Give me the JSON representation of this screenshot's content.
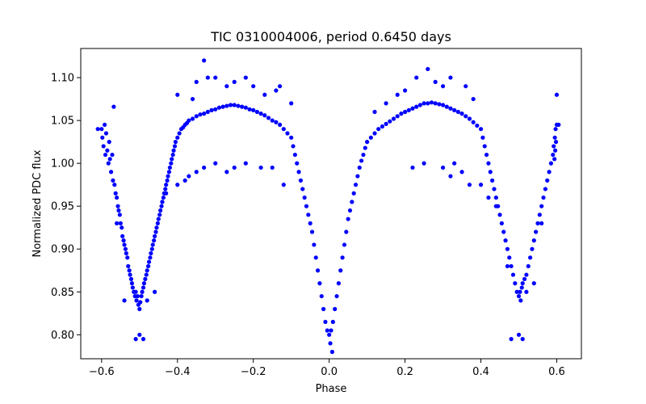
{
  "chart_data": {
    "type": "scatter",
    "title": "TIC 0310004006, period 0.6450 days",
    "xlabel": "Phase",
    "ylabel": "Normalized PDC flux",
    "xlim": [
      -0.655,
      0.665
    ],
    "ylim": [
      0.772,
      1.134
    ],
    "grid": false,
    "legend": "none",
    "marker_color": "#0000ff",
    "x_ticks": [
      {
        "value": -0.6,
        "label": "−0.6"
      },
      {
        "value": -0.4,
        "label": "−0.4"
      },
      {
        "value": -0.2,
        "label": "−0.2"
      },
      {
        "value": 0.0,
        "label": "0.0"
      },
      {
        "value": 0.2,
        "label": "0.2"
      },
      {
        "value": 0.4,
        "label": "0.4"
      },
      {
        "value": 0.6,
        "label": "0.6"
      }
    ],
    "y_ticks": [
      {
        "value": 0.8,
        "label": "0.80"
      },
      {
        "value": 0.85,
        "label": "0.85"
      },
      {
        "value": 0.9,
        "label": "0.90"
      },
      {
        "value": 0.95,
        "label": "0.95"
      },
      {
        "value": 1.0,
        "label": "1.00"
      },
      {
        "value": 1.05,
        "label": "1.05"
      },
      {
        "value": 1.1,
        "label": "1.10"
      }
    ],
    "series": [
      {
        "points": [
          [
            -0.6,
            1.04
          ],
          [
            -0.598,
            1.03
          ],
          [
            -0.595,
            1.02
          ],
          [
            -0.592,
            1.045
          ],
          [
            -0.59,
            1.01
          ],
          [
            -0.588,
            1.035
          ],
          [
            -0.585,
            1.015
          ],
          [
            -0.582,
            1.0
          ],
          [
            -0.58,
            1.025
          ],
          [
            -0.578,
            1.005
          ],
          [
            -0.575,
            0.99
          ],
          [
            -0.572,
            1.01
          ],
          [
            -0.57,
            0.98
          ],
          [
            -0.568,
            1.066
          ],
          [
            -0.566,
            0.975
          ],
          [
            -0.563,
            0.965
          ],
          [
            -0.56,
            0.96
          ],
          [
            -0.557,
            0.95
          ],
          [
            -0.555,
            0.945
          ],
          [
            -0.552,
            0.94
          ],
          [
            -0.55,
            0.93
          ],
          [
            -0.547,
            0.925
          ],
          [
            -0.545,
            0.915
          ],
          [
            -0.542,
            0.91
          ],
          [
            -0.54,
            0.905
          ],
          [
            -0.537,
            0.9
          ],
          [
            -0.535,
            0.895
          ],
          [
            -0.532,
            0.89
          ],
          [
            -0.53,
            0.88
          ],
          [
            -0.527,
            0.875
          ],
          [
            -0.525,
            0.87
          ],
          [
            -0.522,
            0.865
          ],
          [
            -0.52,
            0.86
          ],
          [
            -0.518,
            0.855
          ],
          [
            -0.515,
            0.85
          ],
          [
            -0.512,
            0.845
          ],
          [
            -0.51,
            0.85
          ],
          [
            -0.508,
            0.84
          ],
          [
            -0.505,
            0.845
          ],
          [
            -0.503,
            0.835
          ],
          [
            -0.5,
            0.83
          ],
          [
            -0.498,
            0.838
          ],
          [
            -0.495,
            0.845
          ],
          [
            -0.493,
            0.85
          ],
          [
            -0.49,
            0.855
          ],
          [
            -0.488,
            0.86
          ],
          [
            -0.485,
            0.865
          ],
          [
            -0.482,
            0.87
          ],
          [
            -0.48,
            0.875
          ],
          [
            -0.477,
            0.88
          ],
          [
            -0.475,
            0.885
          ],
          [
            -0.472,
            0.89
          ],
          [
            -0.47,
            0.895
          ],
          [
            -0.467,
            0.9
          ],
          [
            -0.465,
            0.905
          ],
          [
            -0.462,
            0.91
          ],
          [
            -0.46,
            0.915
          ],
          [
            -0.457,
            0.92
          ],
          [
            -0.455,
            0.925
          ],
          [
            -0.452,
            0.93
          ],
          [
            -0.45,
            0.935
          ],
          [
            -0.447,
            0.94
          ],
          [
            -0.445,
            0.945
          ],
          [
            -0.442,
            0.95
          ],
          [
            -0.44,
            0.955
          ],
          [
            -0.437,
            0.96
          ],
          [
            -0.435,
            0.965
          ],
          [
            -0.432,
            0.97
          ],
          [
            -0.43,
            0.975
          ],
          [
            -0.427,
            0.98
          ],
          [
            -0.425,
            0.985
          ],
          [
            -0.422,
            0.99
          ],
          [
            -0.42,
            0.995
          ],
          [
            -0.417,
            1.0
          ],
          [
            -0.415,
            1.005
          ],
          [
            -0.412,
            1.01
          ],
          [
            -0.41,
            1.015
          ],
          [
            -0.407,
            1.02
          ],
          [
            -0.405,
            1.025
          ],
          [
            -0.4,
            1.03
          ],
          [
            -0.395,
            1.035
          ],
          [
            -0.39,
            1.04
          ],
          [
            -0.385,
            1.042
          ],
          [
            -0.38,
            1.045
          ],
          [
            -0.375,
            1.047
          ],
          [
            -0.37,
            1.05
          ],
          [
            -0.36,
            1.052
          ],
          [
            -0.35,
            1.055
          ],
          [
            -0.34,
            1.057
          ],
          [
            -0.33,
            1.058
          ],
          [
            -0.32,
            1.06
          ],
          [
            -0.31,
            1.062
          ],
          [
            -0.3,
            1.063
          ],
          [
            -0.29,
            1.065
          ],
          [
            -0.28,
            1.066
          ],
          [
            -0.27,
            1.067
          ],
          [
            -0.26,
            1.068
          ],
          [
            -0.25,
            1.068
          ],
          [
            -0.24,
            1.067
          ],
          [
            -0.23,
            1.066
          ],
          [
            -0.22,
            1.065
          ],
          [
            -0.21,
            1.063
          ],
          [
            -0.2,
            1.062
          ],
          [
            -0.19,
            1.06
          ],
          [
            -0.18,
            1.058
          ],
          [
            -0.17,
            1.056
          ],
          [
            -0.16,
            1.053
          ],
          [
            -0.15,
            1.05
          ],
          [
            -0.14,
            1.048
          ],
          [
            -0.13,
            1.045
          ],
          [
            -0.12,
            1.04
          ],
          [
            -0.11,
            1.035
          ],
          [
            -0.1,
            1.03
          ],
          [
            -0.095,
            1.02
          ],
          [
            -0.09,
            1.01
          ],
          [
            -0.085,
            1.0
          ],
          [
            -0.08,
            0.99
          ],
          [
            -0.075,
            0.98
          ],
          [
            -0.07,
            0.97
          ],
          [
            -0.065,
            0.96
          ],
          [
            -0.06,
            0.95
          ],
          [
            -0.055,
            0.94
          ],
          [
            -0.05,
            0.93
          ],
          [
            -0.045,
            0.92
          ],
          [
            -0.04,
            0.905
          ],
          [
            -0.035,
            0.89
          ],
          [
            -0.03,
            0.875
          ],
          [
            -0.025,
            0.86
          ],
          [
            -0.02,
            0.845
          ],
          [
            -0.015,
            0.83
          ],
          [
            -0.01,
            0.815
          ],
          [
            -0.005,
            0.805
          ],
          [
            0.0,
            0.8
          ],
          [
            0.003,
            0.79
          ],
          [
            0.005,
            0.805
          ],
          [
            0.008,
            0.78
          ],
          [
            0.01,
            0.815
          ],
          [
            0.015,
            0.83
          ],
          [
            0.02,
            0.845
          ],
          [
            0.025,
            0.86
          ],
          [
            0.03,
            0.875
          ],
          [
            0.035,
            0.89
          ],
          [
            0.04,
            0.905
          ],
          [
            0.045,
            0.92
          ],
          [
            0.05,
            0.935
          ],
          [
            0.055,
            0.945
          ],
          [
            0.06,
            0.955
          ],
          [
            0.065,
            0.965
          ],
          [
            0.07,
            0.975
          ],
          [
            0.075,
            0.985
          ],
          [
            0.08,
            0.995
          ],
          [
            0.085,
            1.003
          ],
          [
            0.09,
            1.01
          ],
          [
            0.095,
            1.018
          ],
          [
            0.1,
            1.025
          ],
          [
            0.11,
            1.03
          ],
          [
            0.12,
            1.035
          ],
          [
            0.13,
            1.04
          ],
          [
            0.14,
            1.043
          ],
          [
            0.15,
            1.046
          ],
          [
            0.16,
            1.049
          ],
          [
            0.17,
            1.052
          ],
          [
            0.18,
            1.055
          ],
          [
            0.19,
            1.058
          ],
          [
            0.2,
            1.06
          ],
          [
            0.21,
            1.062
          ],
          [
            0.22,
            1.064
          ],
          [
            0.23,
            1.066
          ],
          [
            0.24,
            1.068
          ],
          [
            0.25,
            1.07
          ],
          [
            0.26,
            1.07
          ],
          [
            0.27,
            1.071
          ],
          [
            0.28,
            1.07
          ],
          [
            0.29,
            1.069
          ],
          [
            0.3,
            1.068
          ],
          [
            0.31,
            1.066
          ],
          [
            0.32,
            1.064
          ],
          [
            0.33,
            1.062
          ],
          [
            0.34,
            1.06
          ],
          [
            0.35,
            1.058
          ],
          [
            0.36,
            1.055
          ],
          [
            0.37,
            1.052
          ],
          [
            0.38,
            1.048
          ],
          [
            0.39,
            1.044
          ],
          [
            0.4,
            1.04
          ],
          [
            0.405,
            1.03
          ],
          [
            0.41,
            1.02
          ],
          [
            0.415,
            1.01
          ],
          [
            0.42,
            1.0
          ],
          [
            0.425,
            0.99
          ],
          [
            0.43,
            0.98
          ],
          [
            0.435,
            0.97
          ],
          [
            0.44,
            0.96
          ],
          [
            0.445,
            0.95
          ],
          [
            0.45,
            0.94
          ],
          [
            0.455,
            0.93
          ],
          [
            0.46,
            0.92
          ],
          [
            0.465,
            0.91
          ],
          [
            0.47,
            0.9
          ],
          [
            0.475,
            0.89
          ],
          [
            0.48,
            0.88
          ],
          [
            0.485,
            0.87
          ],
          [
            0.49,
            0.86
          ],
          [
            0.495,
            0.85
          ],
          [
            0.5,
            0.845
          ],
          [
            0.503,
            0.85
          ],
          [
            0.505,
            0.84
          ],
          [
            0.508,
            0.855
          ],
          [
            0.51,
            0.86
          ],
          [
            0.515,
            0.865
          ],
          [
            0.52,
            0.87
          ],
          [
            0.525,
            0.88
          ],
          [
            0.53,
            0.89
          ],
          [
            0.535,
            0.9
          ],
          [
            0.54,
            0.91
          ],
          [
            0.545,
            0.92
          ],
          [
            0.55,
            0.93
          ],
          [
            0.555,
            0.94
          ],
          [
            0.56,
            0.95
          ],
          [
            0.565,
            0.96
          ],
          [
            0.57,
            0.97
          ],
          [
            0.575,
            0.98
          ],
          [
            0.58,
            0.99
          ],
          [
            0.585,
            1.0
          ],
          [
            0.59,
            1.01
          ],
          [
            0.592,
            1.02
          ],
          [
            0.595,
            1.03
          ],
          [
            0.597,
            1.04
          ],
          [
            0.6,
            1.045
          ],
          [
            0.598,
            1.025
          ],
          [
            0.596,
            1.015
          ],
          [
            0.594,
            1.005
          ],
          [
            -0.35,
            1.095
          ],
          [
            -0.33,
            1.12
          ],
          [
            -0.3,
            1.1
          ],
          [
            -0.27,
            1.09
          ],
          [
            -0.25,
            1.095
          ],
          [
            -0.22,
            1.1
          ],
          [
            -0.2,
            1.09
          ],
          [
            -0.17,
            1.08
          ],
          [
            -0.14,
            1.085
          ],
          [
            -0.13,
            1.09
          ],
          [
            -0.1,
            1.07
          ],
          [
            -0.4,
            1.08
          ],
          [
            -0.36,
            1.075
          ],
          [
            -0.32,
            1.1
          ],
          [
            -0.35,
            0.99
          ],
          [
            -0.37,
            0.985
          ],
          [
            -0.38,
            0.98
          ],
          [
            -0.33,
            0.995
          ],
          [
            -0.3,
            1.0
          ],
          [
            -0.27,
            0.99
          ],
          [
            -0.25,
            0.995
          ],
          [
            -0.22,
            1.0
          ],
          [
            -0.18,
            0.995
          ],
          [
            -0.15,
            0.995
          ],
          [
            -0.12,
            0.975
          ],
          [
            -0.4,
            0.975
          ],
          [
            -0.44,
            0.955
          ],
          [
            -0.43,
            0.965
          ],
          [
            0.23,
            1.1
          ],
          [
            0.26,
            1.11
          ],
          [
            0.28,
            1.095
          ],
          [
            0.3,
            1.09
          ],
          [
            0.32,
            1.1
          ],
          [
            0.36,
            1.09
          ],
          [
            0.38,
            1.075
          ],
          [
            0.2,
            1.085
          ],
          [
            0.18,
            1.08
          ],
          [
            0.15,
            1.07
          ],
          [
            0.12,
            1.06
          ],
          [
            0.22,
            0.995
          ],
          [
            0.25,
            1.0
          ],
          [
            0.3,
            0.995
          ],
          [
            0.32,
            0.985
          ],
          [
            0.4,
            0.975
          ],
          [
            0.42,
            0.96
          ],
          [
            0.44,
            0.95
          ],
          [
            0.33,
            1.0
          ],
          [
            0.35,
            0.99
          ],
          [
            0.37,
            0.975
          ],
          [
            -0.51,
            0.795
          ],
          [
            -0.5,
            0.8
          ],
          [
            -0.49,
            0.795
          ],
          [
            0.48,
            0.795
          ],
          [
            0.5,
            0.8
          ],
          [
            0.51,
            0.795
          ],
          [
            0.6,
            1.08
          ],
          [
            -0.61,
            1.04
          ],
          [
            0.605,
            1.045
          ],
          [
            -0.48,
            0.84
          ],
          [
            -0.46,
            0.85
          ],
          [
            -0.54,
            0.84
          ],
          [
            -0.56,
            0.93
          ],
          [
            0.47,
            0.88
          ],
          [
            0.56,
            0.93
          ],
          [
            0.52,
            0.85
          ],
          [
            0.54,
            0.86
          ]
        ]
      }
    ]
  }
}
